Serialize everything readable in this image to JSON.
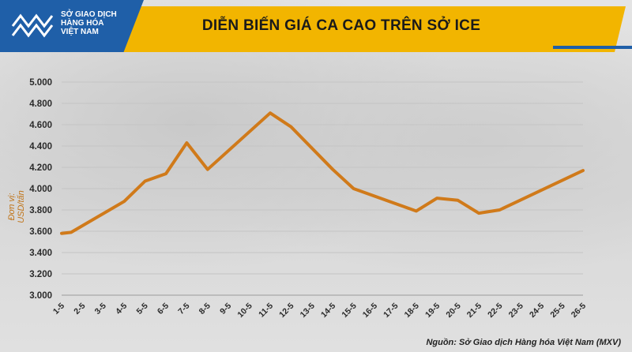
{
  "header": {
    "logo_lines": [
      "SỞ GIAO DỊCH",
      "HÀNG HÓA",
      "VIỆT NAM"
    ],
    "brand_color": "#1f5fa8",
    "banner_color": "#f2b500"
  },
  "chart_data": {
    "type": "line",
    "title": "DIỄN BIẾN GIÁ CA CAO TRÊN SỞ ICE",
    "ylabel": "Đơn vị: USD/tấn",
    "xlabel": "",
    "ylim": [
      3000,
      5000
    ],
    "yticks": [
      "5.000",
      "4.800",
      "4.600",
      "4.400",
      "4.200",
      "4.000",
      "3.800",
      "3.600",
      "3.400",
      "3.200",
      "3.000"
    ],
    "ytick_values": [
      5000,
      4800,
      4600,
      4400,
      4200,
      4000,
      3800,
      3600,
      3400,
      3200,
      3000
    ],
    "categories": [
      "1-5",
      "2-5",
      "3-5",
      "4-5",
      "5-5",
      "6-5",
      "7-5",
      "8-5",
      "9-5",
      "10-5",
      "11-5",
      "12-5",
      "13-5",
      "14-5",
      "15-5",
      "16-5",
      "17-5",
      "18-5",
      "19-5",
      "20-5",
      "21-5",
      "22-5",
      "23-5",
      "24-5",
      "25-5",
      "26-5"
    ],
    "series": [
      {
        "color": "#d07a1a",
        "points": [
          {
            "x": "1-5",
            "y": 3580
          },
          {
            "x": "1-5",
            "y": 3590
          },
          {
            "x": "4-5",
            "y": 3880
          },
          {
            "x": "5-5",
            "y": 4070
          },
          {
            "x": "6-5",
            "y": 4140
          },
          {
            "x": "7-5",
            "y": 4430
          },
          {
            "x": "8-5",
            "y": 4180
          },
          {
            "x": "11-5",
            "y": 4710
          },
          {
            "x": "12-5",
            "y": 4580
          },
          {
            "x": "14-5",
            "y": 4180
          },
          {
            "x": "15-5",
            "y": 4000
          },
          {
            "x": "18-5",
            "y": 3790
          },
          {
            "x": "19-5",
            "y": 3910
          },
          {
            "x": "20-5",
            "y": 3890
          },
          {
            "x": "21-5",
            "y": 3770
          },
          {
            "x": "22-5",
            "y": 3800
          },
          {
            "x": "26-5",
            "y": 4170
          }
        ]
      }
    ],
    "grid": true,
    "legend": "none",
    "source": "Nguồn: Sở Giao dịch Hàng hóa Việt Nam (MXV)"
  }
}
